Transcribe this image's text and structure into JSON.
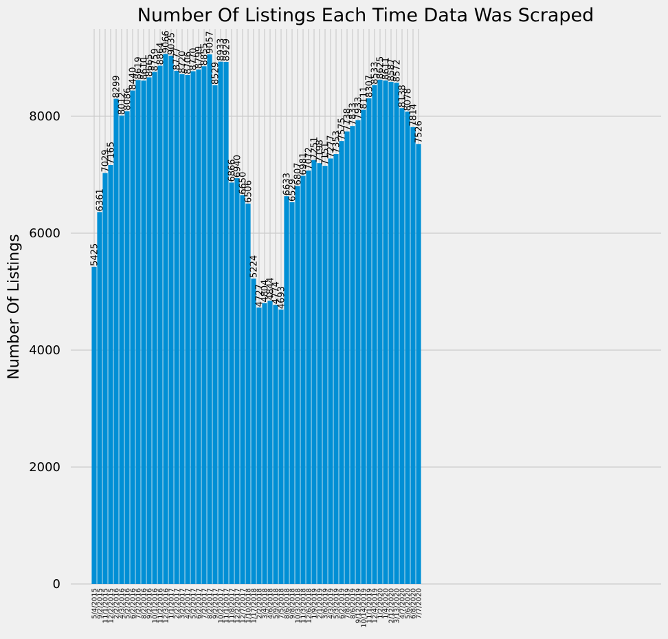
{
  "chart_data": {
    "type": "bar",
    "title": "Number Of Listings Each Time Data Was Scraped",
    "xlabel": "",
    "ylabel": "Number Of Listings",
    "ylim": [
      0,
      9500
    ],
    "yticks": [
      0,
      2000,
      4000,
      6000,
      8000
    ],
    "grid": true,
    "bar_color": "#008fd5",
    "background_color": "#f0f0f0",
    "categories": [
      "5/4/2015",
      "9/2/2015",
      "11/1/2015",
      "12/2/2015",
      "2/2/2016",
      "4/3/2016",
      "5/2/2016",
      "6/2/2016",
      "7/2/2016",
      "8/2/2016",
      "9/2/2016",
      "10/1/2016",
      "11/2/2016",
      "12/3/2016",
      "1/1/2017",
      "2/2/2017",
      "3/2/2017",
      "4/2/2017",
      "5/2/2017",
      "6/2/2017",
      "7/2/2017",
      "8/2/2017",
      "9/2/2017",
      "10/2/2017",
      "11/1/2017",
      "11/8/2017",
      "12/2/2017",
      "12/7/2017",
      "1/10/2018",
      "1/17/2018",
      "2/2/2018",
      "3/4/2018",
      "4/6/2018",
      "5/9/2018",
      "7/5/2018",
      "8/6/2018",
      "9/8/2018",
      "10/3/2018",
      "11/3/2018",
      "12/6/2018",
      "1/9/2019",
      "2/1/2019",
      "3/6/2019",
      "4/3/2019",
      "5/3/2019",
      "6/2/2019",
      "7/8/2019",
      "8/6/2019",
      "9/12/2019",
      "10/14/2019",
      "11/1/2019",
      "12/4/2019",
      "1/2/2020",
      "1/4/2020",
      "2/12/2020",
      "3/13/2020",
      "4/7/2020",
      "5/6/2020",
      "6/8/2020",
      "7/7/2020"
    ],
    "values": [
      5425,
      6361,
      7029,
      7165,
      8299,
      8012,
      8086,
      8440,
      8619,
      8610,
      8665,
      8759,
      8864,
      9066,
      9035,
      8777,
      8720,
      8706,
      8770,
      8799,
      8855,
      9057,
      8529,
      8933,
      8929,
      6866,
      6940,
      6650,
      6506,
      5224,
      4727,
      4804,
      4844,
      4774,
      4693,
      6633,
      6529,
      6807,
      6981,
      7072,
      7251,
      7198,
      7151,
      7277,
      7353,
      7575,
      7738,
      7833,
      7933,
      8111,
      8307,
      8533,
      8625,
      8611,
      8587,
      8572,
      8138,
      8078,
      7814,
      7526
    ]
  }
}
